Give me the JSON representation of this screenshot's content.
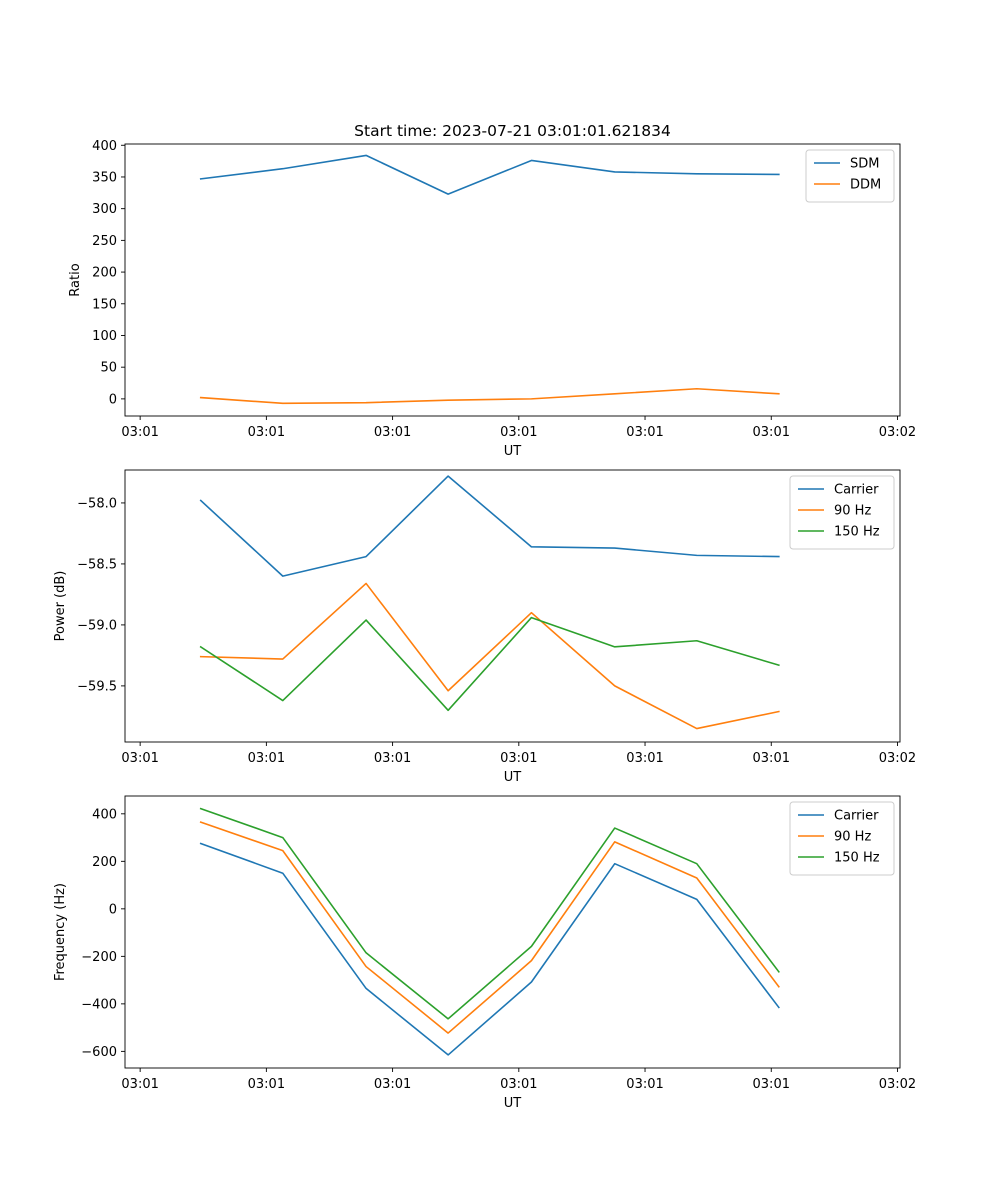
{
  "chart_data": [
    {
      "type": "line",
      "title": "Start time: 2023-07-21 03:01:01.621834",
      "xlabel": "UT",
      "ylabel": "Ratio",
      "x_ticks": [
        "03:01",
        "03:01",
        "03:01",
        "03:01",
        "03:01",
        "03:01",
        "03:02"
      ],
      "x_tick_values": [
        0,
        1,
        2,
        3,
        4,
        5,
        6
      ],
      "xlim": [
        -0.12,
        6.02
      ],
      "ylim": [
        -27,
        402
      ],
      "y_ticks": [
        0,
        50,
        100,
        150,
        200,
        250,
        300,
        350,
        400
      ],
      "y_tick_labels": [
        "0",
        "50",
        "100",
        "150",
        "200",
        "250",
        "300",
        "350",
        "400"
      ],
      "x": [
        0.48,
        1.13,
        1.79,
        2.44,
        3.1,
        3.76,
        4.41,
        5.06
      ],
      "series": [
        {
          "name": "SDM",
          "color": "#1f77b4",
          "values": [
            347,
            363,
            384,
            323,
            376,
            358,
            355,
            354
          ]
        },
        {
          "name": "DDM",
          "color": "#ff7f0e",
          "values": [
            2,
            -7,
            -6,
            -2,
            0,
            8,
            16,
            8
          ]
        }
      ],
      "legend": "upper right"
    },
    {
      "type": "line",
      "title": "",
      "xlabel": "UT",
      "ylabel": "Power (dB)",
      "x_ticks": [
        "03:01",
        "03:01",
        "03:01",
        "03:01",
        "03:01",
        "03:01",
        "03:02"
      ],
      "x_tick_values": [
        0,
        1,
        2,
        3,
        4,
        5,
        6
      ],
      "xlim": [
        -0.12,
        6.02
      ],
      "ylim": [
        -59.96,
        -57.73
      ],
      "y_ticks": [
        -59.5,
        -59.0,
        -58.5,
        -58.0
      ],
      "y_tick_labels": [
        "−59.5",
        "−59.0",
        "−58.5",
        "−58.0"
      ],
      "x": [
        0.48,
        1.13,
        1.79,
        2.44,
        3.1,
        3.76,
        4.41,
        5.06
      ],
      "series": [
        {
          "name": "Carrier",
          "color": "#1f77b4",
          "values": [
            -57.98,
            -58.6,
            -58.44,
            -57.78,
            -58.36,
            -58.37,
            -58.43,
            -58.44
          ]
        },
        {
          "name": "90 Hz",
          "color": "#ff7f0e",
          "values": [
            -59.26,
            -59.28,
            -58.66,
            -59.54,
            -58.9,
            -59.5,
            -59.85,
            -59.71
          ]
        },
        {
          "name": "150 Hz",
          "color": "#2ca02c",
          "values": [
            -59.18,
            -59.62,
            -58.96,
            -59.7,
            -58.94,
            -59.18,
            -59.13,
            -59.33
          ]
        }
      ],
      "legend": "upper right"
    },
    {
      "type": "line",
      "title": "",
      "xlabel": "UT",
      "ylabel": "Frequency (Hz)",
      "x_ticks": [
        "03:01",
        "03:01",
        "03:01",
        "03:01",
        "03:01",
        "03:01",
        "03:02"
      ],
      "x_tick_values": [
        0,
        1,
        2,
        3,
        4,
        5,
        6
      ],
      "xlim": [
        -0.12,
        6.02
      ],
      "ylim": [
        -670,
        475
      ],
      "y_ticks": [
        -600,
        -400,
        -200,
        0,
        200,
        400
      ],
      "y_tick_labels": [
        "−600",
        "−400",
        "−200",
        "0",
        "200",
        "400"
      ],
      "x": [
        0.48,
        1.13,
        1.79,
        2.44,
        3.1,
        3.76,
        4.41,
        5.06
      ],
      "series": [
        {
          "name": "Carrier",
          "color": "#1f77b4",
          "values": [
            275,
            150,
            -335,
            -615,
            -308,
            190,
            40,
            -415
          ]
        },
        {
          "name": "90 Hz",
          "color": "#ff7f0e",
          "values": [
            365,
            245,
            -243,
            -523,
            -218,
            282,
            130,
            -328
          ]
        },
        {
          "name": "150 Hz",
          "color": "#2ca02c",
          "values": [
            422,
            300,
            -185,
            -463,
            -158,
            340,
            190,
            -265
          ]
        }
      ],
      "legend": "upper right"
    }
  ]
}
